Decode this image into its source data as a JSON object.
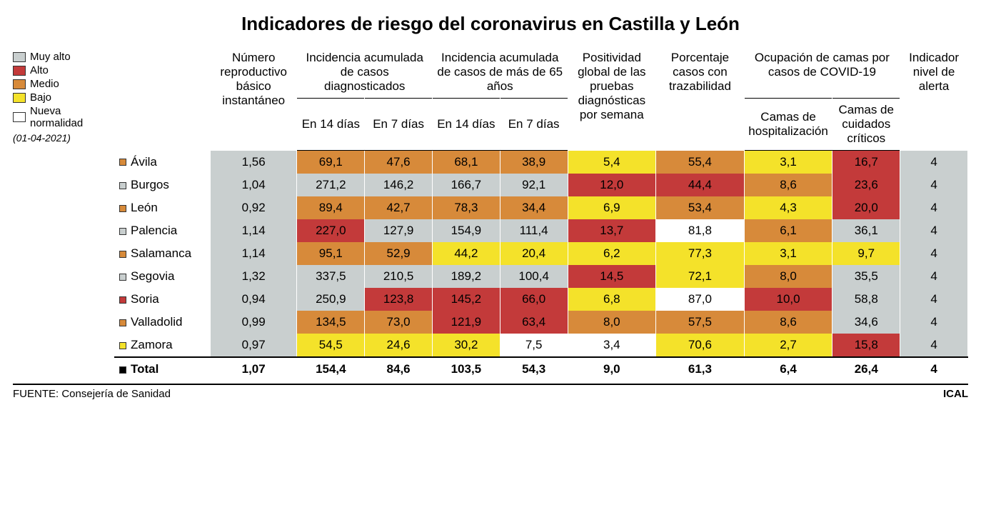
{
  "title": "Indicadores de riesgo del coronavirus en Castilla y León",
  "date": "(01-04-2021)",
  "source_label": "FUENTE: Consejería de Sanidad",
  "agency": "ICAL",
  "colors": {
    "muy_alto": "#c9cfcf",
    "alto": "#c33a3a",
    "medio": "#d78a3a",
    "bajo": "#f4e22a",
    "nueva": "#ffffff",
    "total_bullet": "#000000"
  },
  "legend": [
    {
      "label": "Muy alto",
      "colorKey": "muy_alto"
    },
    {
      "label": "Alto",
      "colorKey": "alto"
    },
    {
      "label": "Medio",
      "colorKey": "medio"
    },
    {
      "label": "Bajo",
      "colorKey": "bajo"
    },
    {
      "label": "Nueva normalidad",
      "colorKey": "nueva"
    }
  ],
  "headers": {
    "reproductivo": "Número reproductivo básico instantáneo",
    "incidencia_diag": "Incidencia acumulada de casos diagnosticados",
    "incidencia_65": "Incidencia acumulada de casos de más de 65 años",
    "positividad": "Positividad global de las pruebas diagnósticas por semana",
    "trazabilidad": "Porcentaje casos con trazabilidad",
    "ocupacion": "Ocupación de camas por casos de COVID-19",
    "indicador": "Indicador nivel de alerta",
    "sub_14d": "En 14 días",
    "sub_7d": "En 7 días",
    "sub_hosp": "Camas de hospitalización",
    "sub_crit": "Camas de cuidados críticos"
  },
  "rows": [
    {
      "name": "Ávila",
      "bullet": "medio",
      "cells": [
        {
          "v": "1,56",
          "c": "muy_alto"
        },
        {
          "v": "69,1",
          "c": "medio"
        },
        {
          "v": "47,6",
          "c": "medio"
        },
        {
          "v": "68,1",
          "c": "medio"
        },
        {
          "v": "38,9",
          "c": "medio"
        },
        {
          "v": "5,4",
          "c": "bajo"
        },
        {
          "v": "55,4",
          "c": "medio"
        },
        {
          "v": "3,1",
          "c": "bajo"
        },
        {
          "v": "16,7",
          "c": "alto"
        },
        {
          "v": "4",
          "c": "muy_alto"
        }
      ]
    },
    {
      "name": "Burgos",
      "bullet": "muy_alto",
      "cells": [
        {
          "v": "1,04",
          "c": "muy_alto"
        },
        {
          "v": "271,2",
          "c": "muy_alto"
        },
        {
          "v": "146,2",
          "c": "muy_alto"
        },
        {
          "v": "166,7",
          "c": "muy_alto"
        },
        {
          "v": "92,1",
          "c": "muy_alto"
        },
        {
          "v": "12,0",
          "c": "alto"
        },
        {
          "v": "44,4",
          "c": "alto"
        },
        {
          "v": "8,6",
          "c": "medio"
        },
        {
          "v": "23,6",
          "c": "alto"
        },
        {
          "v": "4",
          "c": "muy_alto"
        }
      ]
    },
    {
      "name": "León",
      "bullet": "medio",
      "cells": [
        {
          "v": "0,92",
          "c": "muy_alto"
        },
        {
          "v": "89,4",
          "c": "medio"
        },
        {
          "v": "42,7",
          "c": "medio"
        },
        {
          "v": "78,3",
          "c": "medio"
        },
        {
          "v": "34,4",
          "c": "medio"
        },
        {
          "v": "6,9",
          "c": "bajo"
        },
        {
          "v": "53,4",
          "c": "medio"
        },
        {
          "v": "4,3",
          "c": "bajo"
        },
        {
          "v": "20,0",
          "c": "alto"
        },
        {
          "v": "4",
          "c": "muy_alto"
        }
      ]
    },
    {
      "name": "Palencia",
      "bullet": "muy_alto",
      "cells": [
        {
          "v": "1,14",
          "c": "muy_alto"
        },
        {
          "v": "227,0",
          "c": "alto"
        },
        {
          "v": "127,9",
          "c": "muy_alto"
        },
        {
          "v": "154,9",
          "c": "muy_alto"
        },
        {
          "v": "111,4",
          "c": "muy_alto"
        },
        {
          "v": "13,7",
          "c": "alto"
        },
        {
          "v": "81,8",
          "c": "nueva"
        },
        {
          "v": "6,1",
          "c": "medio"
        },
        {
          "v": "36,1",
          "c": "muy_alto"
        },
        {
          "v": "4",
          "c": "muy_alto"
        }
      ]
    },
    {
      "name": "Salamanca",
      "bullet": "medio",
      "cells": [
        {
          "v": "1,14",
          "c": "muy_alto"
        },
        {
          "v": "95,1",
          "c": "medio"
        },
        {
          "v": "52,9",
          "c": "medio"
        },
        {
          "v": "44,2",
          "c": "bajo"
        },
        {
          "v": "20,4",
          "c": "bajo"
        },
        {
          "v": "6,2",
          "c": "bajo"
        },
        {
          "v": "77,3",
          "c": "bajo"
        },
        {
          "v": "3,1",
          "c": "bajo"
        },
        {
          "v": "9,7",
          "c": "bajo"
        },
        {
          "v": "4",
          "c": "muy_alto"
        }
      ]
    },
    {
      "name": "Segovia",
      "bullet": "muy_alto",
      "cells": [
        {
          "v": "1,32",
          "c": "muy_alto"
        },
        {
          "v": "337,5",
          "c": "muy_alto"
        },
        {
          "v": "210,5",
          "c": "muy_alto"
        },
        {
          "v": "189,2",
          "c": "muy_alto"
        },
        {
          "v": "100,4",
          "c": "muy_alto"
        },
        {
          "v": "14,5",
          "c": "alto"
        },
        {
          "v": "72,1",
          "c": "bajo"
        },
        {
          "v": "8,0",
          "c": "medio"
        },
        {
          "v": "35,5",
          "c": "muy_alto"
        },
        {
          "v": "4",
          "c": "muy_alto"
        }
      ]
    },
    {
      "name": "Soria",
      "bullet": "alto",
      "cells": [
        {
          "v": "0,94",
          "c": "muy_alto"
        },
        {
          "v": "250,9",
          "c": "muy_alto"
        },
        {
          "v": "123,8",
          "c": "alto"
        },
        {
          "v": "145,2",
          "c": "alto"
        },
        {
          "v": "66,0",
          "c": "alto"
        },
        {
          "v": "6,8",
          "c": "bajo"
        },
        {
          "v": "87,0",
          "c": "nueva"
        },
        {
          "v": "10,0",
          "c": "alto"
        },
        {
          "v": "58,8",
          "c": "muy_alto"
        },
        {
          "v": "4",
          "c": "muy_alto"
        }
      ]
    },
    {
      "name": "Valladolid",
      "bullet": "medio",
      "cells": [
        {
          "v": "0,99",
          "c": "muy_alto"
        },
        {
          "v": "134,5",
          "c": "medio"
        },
        {
          "v": "73,0",
          "c": "medio"
        },
        {
          "v": "121,9",
          "c": "alto"
        },
        {
          "v": "63,4",
          "c": "alto"
        },
        {
          "v": "8,0",
          "c": "medio"
        },
        {
          "v": "57,5",
          "c": "medio"
        },
        {
          "v": "8,6",
          "c": "medio"
        },
        {
          "v": "34,6",
          "c": "muy_alto"
        },
        {
          "v": "4",
          "c": "muy_alto"
        }
      ]
    },
    {
      "name": "Zamora",
      "bullet": "bajo",
      "cells": [
        {
          "v": "0,97",
          "c": "muy_alto"
        },
        {
          "v": "54,5",
          "c": "bajo"
        },
        {
          "v": "24,6",
          "c": "bajo"
        },
        {
          "v": "30,2",
          "c": "bajo"
        },
        {
          "v": "7,5",
          "c": "nueva"
        },
        {
          "v": "3,4",
          "c": "nueva"
        },
        {
          "v": "70,6",
          "c": "bajo"
        },
        {
          "v": "2,7",
          "c": "bajo"
        },
        {
          "v": "15,8",
          "c": "alto"
        },
        {
          "v": "4",
          "c": "muy_alto"
        }
      ]
    }
  ],
  "total": {
    "name": "Total",
    "bullet": "total_bullet",
    "cells": [
      {
        "v": "1,07",
        "c": "nueva"
      },
      {
        "v": "154,4",
        "c": "alto"
      },
      {
        "v": "84,6",
        "c": "alto"
      },
      {
        "v": "103,5",
        "c": "alto"
      },
      {
        "v": "54,3",
        "c": "alto"
      },
      {
        "v": "9,0",
        "c": "medio"
      },
      {
        "v": "61,3",
        "c": "medio"
      },
      {
        "v": "6,4",
        "c": "medio"
      },
      {
        "v": "26,4",
        "c": "muy_alto"
      },
      {
        "v": "4",
        "c": "muy_alto"
      }
    ]
  }
}
